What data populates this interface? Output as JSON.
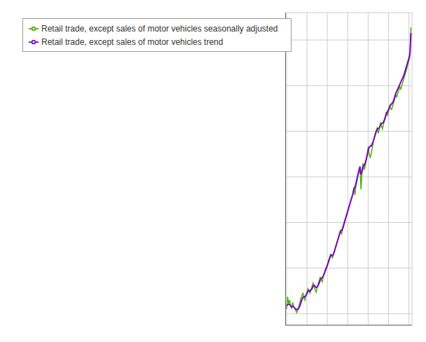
{
  "chart_data": {
    "type": "line",
    "grid": true,
    "legend": "upper left",
    "tick_labels": false,
    "x": [
      0,
      1,
      2,
      3,
      4,
      5,
      6,
      7,
      8,
      9,
      10,
      11,
      12,
      13,
      14,
      15,
      16,
      17,
      18,
      19,
      20,
      21,
      22,
      23,
      24,
      25,
      26,
      27,
      28,
      29,
      30,
      31,
      32,
      33,
      34,
      35,
      36,
      37,
      38,
      39,
      40,
      41,
      42,
      43,
      44,
      45,
      46,
      47,
      48,
      49,
      50,
      51,
      52,
      53,
      54,
      55,
      56,
      57,
      58,
      59,
      60,
      61,
      62,
      63,
      64,
      65,
      66,
      67,
      68,
      69,
      70,
      71,
      72,
      73,
      74,
      75,
      76,
      77,
      78,
      79,
      80,
      81,
      82,
      83,
      84,
      85,
      86,
      87,
      88,
      89,
      90,
      91,
      92,
      93,
      94,
      95,
      96,
      97,
      98,
      99,
      100,
      101,
      102,
      103,
      104,
      105,
      106,
      107,
      108,
      109,
      110,
      111,
      112,
      113,
      114,
      115,
      116,
      117,
      118,
      119,
      120,
      121,
      122
    ],
    "xlim": [
      -1,
      123
    ],
    "xticks": [
      0,
      20,
      40,
      60,
      80,
      100,
      120
    ],
    "ylim": [
      55,
      192
    ],
    "yticks": [
      60,
      80,
      100,
      120,
      140,
      160,
      180
    ],
    "series": [
      {
        "name": "Retail trade, except sales of motor vehicles seasonally adjusted",
        "color": "#4daf00",
        "line_style": "solid",
        "values": [
          62.0,
          67.5,
          64.5,
          66.0,
          63.5,
          62.5,
          65.0,
          63.0,
          62.5,
          61.5,
          60.5,
          61.5,
          63.0,
          65.0,
          66.5,
          68.0,
          69.0,
          67.5,
          66.0,
          68.0,
          69.5,
          71.0,
          70.0,
          69.0,
          70.5,
          72.0,
          73.5,
          72.0,
          70.5,
          69.5,
          71.5,
          73.0,
          74.5,
          76.0,
          75.0,
          74.0,
          76.5,
          78.0,
          79.5,
          80.5,
          81.5,
          83.0,
          84.5,
          86.0,
          85.5,
          84.5,
          86.0,
          87.5,
          89.0,
          90.5,
          92.0,
          93.5,
          95.0,
          96.0,
          95.0,
          97.0,
          98.5,
          100.0,
          102.0,
          103.5,
          105.0,
          106.5,
          108.0,
          109.5,
          111.0,
          112.5,
          115.5,
          112.0,
          116.0,
          118.0,
          120.5,
          122.0,
          124.5,
          114.5,
          122.0,
          126.0,
          123.0,
          124.5,
          127.0,
          129.5,
          133.0,
          130.0,
          128.5,
          130.0,
          132.5,
          135.0,
          137.5,
          139.0,
          140.5,
          141.5,
          139.0,
          141.0,
          143.5,
          142.5,
          141.0,
          143.0,
          144.5,
          146.0,
          148.5,
          147.0,
          148.5,
          151.0,
          150.0,
          149.5,
          151.0,
          152.5,
          154.0,
          156.0,
          155.0,
          156.5,
          158.0,
          159.5,
          158.5,
          160.0,
          161.5,
          163.0,
          164.5,
          166.0,
          167.5,
          169.5,
          171.0,
          173.0,
          185.5
        ]
      },
      {
        "name": "Retail trade, except sales of motor vehicles trend",
        "color": "#7b00c8",
        "line_style": "solid",
        "values": [
          63.5,
          64.0,
          64.2,
          64.0,
          63.5,
          63.0,
          63.2,
          63.0,
          62.5,
          62.0,
          61.8,
          62.0,
          62.5,
          63.5,
          64.8,
          66.0,
          67.2,
          67.5,
          67.5,
          68.0,
          68.8,
          69.8,
          70.2,
          70.0,
          70.5,
          71.0,
          72.0,
          72.5,
          72.0,
          71.5,
          71.8,
          72.5,
          73.5,
          74.8,
          75.5,
          75.8,
          76.5,
          77.5,
          78.8,
          80.0,
          81.2,
          82.5,
          84.0,
          85.2,
          85.8,
          85.5,
          86.2,
          87.5,
          89.0,
          90.5,
          92.0,
          93.5,
          95.0,
          96.5,
          96.5,
          97.5,
          99.0,
          100.5,
          102.0,
          103.5,
          105.0,
          106.5,
          108.0,
          109.5,
          111.0,
          112.5,
          114.5,
          115.5,
          117.0,
          119.0,
          121.0,
          123.0,
          124.5,
          121.0,
          122.5,
          124.5,
          125.0,
          126.0,
          127.5,
          129.5,
          131.5,
          133.0,
          133.5,
          133.5,
          134.5,
          135.5,
          137.0,
          138.5,
          140.0,
          141.0,
          141.2,
          141.5,
          142.5,
          143.5,
          143.5,
          144.0,
          145.0,
          146.5,
          148.0,
          148.5,
          149.5,
          150.5,
          151.5,
          152.0,
          152.5,
          153.5,
          155.0,
          156.5,
          157.5,
          158.5,
          159.5,
          160.5,
          161.5,
          162.5,
          163.5,
          164.5,
          166.0,
          167.5,
          169.0,
          170.5,
          172.0,
          174.0,
          183.0
        ]
      }
    ]
  }
}
